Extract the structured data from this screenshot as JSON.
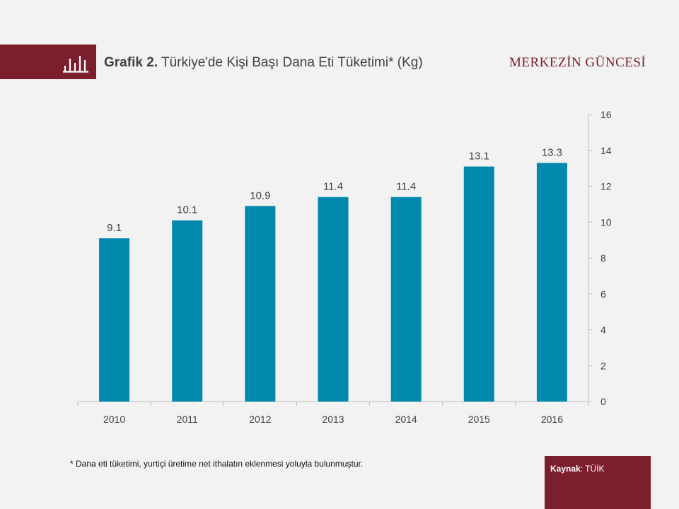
{
  "header": {
    "title_prefix": "Grafik 2.",
    "title_text": "Türkiye'de Kişi Başı Dana Eti Tüketimi* (Kg)",
    "brand": "MERKEZİN GÜNCESİ",
    "icon": "bar-chart-icon"
  },
  "footnote": "* Dana eti tüketimi, yurtiçi üretime net ithalatın eklenmesi yoluyla bulunmuştur.",
  "source": {
    "label": "Kaynak",
    "separator": ": ",
    "value": "TÜİK"
  },
  "colors": {
    "bar": "#0089ad",
    "accent": "#7b1f2d",
    "background": "#f2f2f2"
  },
  "chart_data": {
    "type": "bar",
    "title": "Türkiye'de Kişi Başı Dana Eti Tüketimi* (Kg)",
    "categories": [
      "2010",
      "2011",
      "2012",
      "2013",
      "2014",
      "2015",
      "2016"
    ],
    "values": [
      9.1,
      10.1,
      10.9,
      11.4,
      11.4,
      13.1,
      13.3
    ],
    "value_labels": [
      "9.1",
      "10.1",
      "10.9",
      "11.4",
      "11.4",
      "13.1",
      "13.3"
    ],
    "xlabel": "",
    "ylabel": "",
    "ylim": [
      0,
      16
    ],
    "yticks": [
      0,
      2,
      4,
      6,
      8,
      10,
      12,
      14,
      16
    ],
    "y_axis_position": "right",
    "grid": false,
    "legend": "none"
  }
}
